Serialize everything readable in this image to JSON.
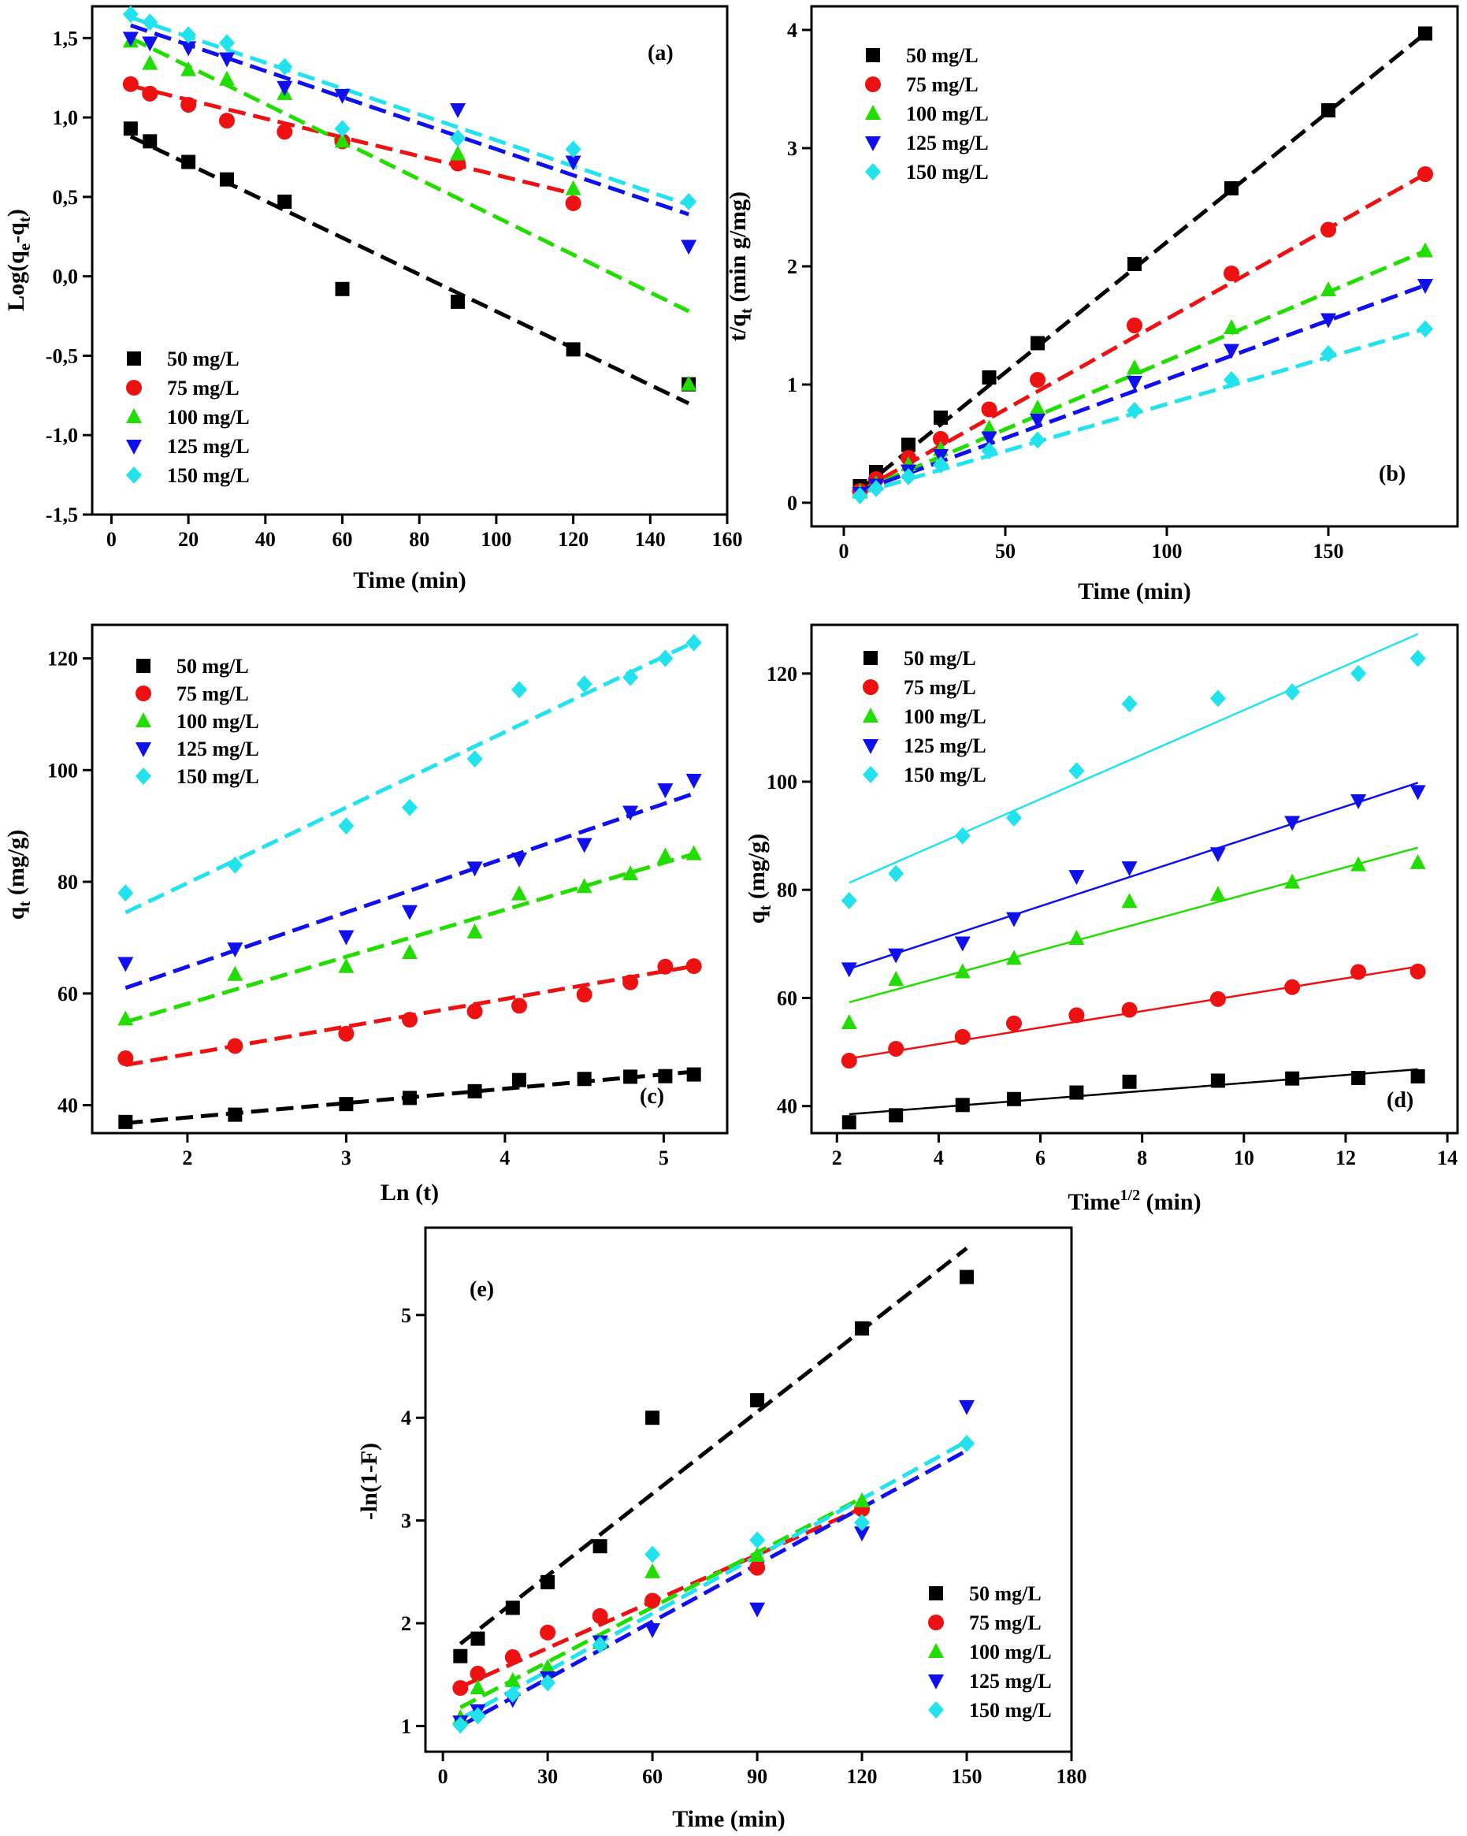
{
  "figure": {
    "colors": [
      "#000000",
      "#ee1111",
      "#22dd00",
      "#1010ee",
      "#22e2ee"
    ],
    "markers": [
      "square",
      "circle",
      "triangle-up",
      "triangle-down",
      "diamond"
    ]
  },
  "chart_data": [
    {
      "id": "a",
      "panel_label": "(a)",
      "type": "scatter",
      "fit_style": "dashed",
      "xlabel": "Time (min)",
      "ylabel": "Log(q_e-q_t)",
      "ylabel_parts": {
        "a": "Log(q",
        "b": "e",
        "c": "-q",
        "d": "t",
        "e": ")"
      },
      "xlim": [
        -5,
        160
      ],
      "ylim": [
        -1.5,
        1.7
      ],
      "xticks": [
        "0",
        "20",
        "40",
        "60",
        "80",
        "100",
        "120",
        "140",
        "160"
      ],
      "xtick_values": [
        0,
        20,
        40,
        60,
        80,
        100,
        120,
        140,
        160
      ],
      "yticks": [
        "-1,5",
        "-1,0",
        "-0,5",
        "0,0",
        "0,5",
        "1,0",
        "1,5"
      ],
      "ytick_values": [
        -1.5,
        -1.0,
        -0.5,
        0.0,
        0.5,
        1.0,
        1.5
      ],
      "legend_position": "bottom-left",
      "series": [
        {
          "name": "50 mg/L",
          "x": [
            5,
            10,
            20,
            30,
            45,
            60,
            90,
            120,
            150
          ],
          "y": [
            0.93,
            0.85,
            0.72,
            0.61,
            0.47,
            -0.08,
            -0.16,
            -0.46,
            -0.68
          ],
          "fit": [
            [
              5,
              0.88
            ],
            [
              150,
              -0.8
            ]
          ]
        },
        {
          "name": "75 mg/L",
          "x": [
            5,
            10,
            20,
            30,
            45,
            60,
            90,
            120
          ],
          "y": [
            1.21,
            1.15,
            1.08,
            0.98,
            0.91,
            0.85,
            0.71,
            0.46
          ],
          "fit": [
            [
              5,
              1.2
            ],
            [
              120,
              0.52
            ]
          ]
        },
        {
          "name": "100 mg/L",
          "x": [
            5,
            10,
            20,
            30,
            45,
            60,
            90,
            120,
            150
          ],
          "y": [
            1.48,
            1.34,
            1.3,
            1.24,
            1.15,
            0.85,
            0.77,
            0.55,
            -0.68
          ],
          "fit": [
            [
              5,
              1.5
            ],
            [
              150,
              -0.22
            ]
          ]
        },
        {
          "name": "125 mg/L",
          "x": [
            5,
            10,
            20,
            30,
            45,
            60,
            90,
            120,
            150
          ],
          "y": [
            1.5,
            1.47,
            1.44,
            1.37,
            1.19,
            1.14,
            1.05,
            0.72,
            0.19
          ],
          "fit": [
            [
              5,
              1.58
            ],
            [
              150,
              0.39
            ]
          ]
        },
        {
          "name": "150 mg/L",
          "x": [
            5,
            10,
            20,
            30,
            45,
            60,
            90,
            120,
            150
          ],
          "y": [
            1.65,
            1.6,
            1.52,
            1.47,
            1.32,
            0.93,
            0.87,
            0.8,
            0.47
          ],
          "fit": [
            [
              5,
              1.63
            ],
            [
              150,
              0.45
            ]
          ]
        }
      ]
    },
    {
      "id": "b",
      "panel_label": "(b)",
      "type": "scatter",
      "fit_style": "dashed",
      "xlabel": "Time (min)",
      "ylabel": "t/q_t (min g/mg)",
      "ylabel_parts": {
        "a": "t/q",
        "b": "t",
        "c": " (min g/mg)"
      },
      "xlim": [
        -10,
        190
      ],
      "ylim": [
        -0.2,
        4.2
      ],
      "xticks": [
        "0",
        "50",
        "100",
        "150"
      ],
      "xtick_values": [
        0,
        50,
        100,
        150
      ],
      "yticks": [
        "0",
        "1",
        "2",
        "3",
        "4"
      ],
      "ytick_values": [
        0,
        1,
        2,
        3,
        4
      ],
      "legend_position": "top-left",
      "series": [
        {
          "name": "50 mg/L",
          "x": [
            5,
            10,
            20,
            30,
            45,
            60,
            90,
            120,
            150,
            180
          ],
          "y": [
            0.14,
            0.26,
            0.49,
            0.72,
            1.06,
            1.35,
            2.02,
            2.66,
            3.32,
            3.97
          ],
          "fit": [
            [
              5,
              0.11
            ],
            [
              180,
              3.97
            ]
          ]
        },
        {
          "name": "75 mg/L",
          "x": [
            5,
            10,
            20,
            30,
            45,
            60,
            90,
            120,
            150,
            180
          ],
          "y": [
            0.1,
            0.2,
            0.38,
            0.54,
            0.79,
            1.04,
            1.5,
            1.94,
            2.31,
            2.78
          ],
          "fit": [
            [
              5,
              0.1
            ],
            [
              180,
              2.78
            ]
          ]
        },
        {
          "name": "100 mg/L",
          "x": [
            5,
            10,
            20,
            30,
            45,
            60,
            90,
            120,
            150,
            180
          ],
          "y": [
            0.09,
            0.16,
            0.32,
            0.45,
            0.63,
            0.8,
            1.14,
            1.48,
            1.8,
            2.13
          ],
          "fit": [
            [
              5,
              0.1
            ],
            [
              180,
              2.13
            ]
          ]
        },
        {
          "name": "125 mg/L",
          "x": [
            5,
            10,
            20,
            30,
            45,
            60,
            90,
            120,
            150,
            180
          ],
          "y": [
            0.08,
            0.15,
            0.27,
            0.4,
            0.55,
            0.7,
            1.02,
            1.29,
            1.55,
            1.84
          ],
          "fit": [
            [
              5,
              0.1
            ],
            [
              180,
              1.84
            ]
          ]
        },
        {
          "name": "150 mg/L",
          "x": [
            5,
            10,
            20,
            30,
            45,
            60,
            90,
            120,
            150,
            180
          ],
          "y": [
            0.06,
            0.12,
            0.22,
            0.32,
            0.44,
            0.53,
            0.78,
            1.04,
            1.26,
            1.47
          ],
          "fit": [
            [
              5,
              0.08
            ],
            [
              180,
              1.47
            ]
          ]
        }
      ]
    },
    {
      "id": "c",
      "panel_label": "(c)",
      "type": "scatter",
      "fit_style": "dashed",
      "xlabel": "Ln (t)",
      "ylabel": "q_t (mg/g)",
      "ylabel_parts": {
        "a": "q",
        "b": "t",
        "c": " (mg/g)"
      },
      "xlim": [
        1.4,
        5.4
      ],
      "ylim": [
        35,
        126
      ],
      "xticks": [
        "2",
        "3",
        "4",
        "5"
      ],
      "xtick_values": [
        2,
        3,
        4,
        5
      ],
      "yticks": [
        "40",
        "60",
        "80",
        "100",
        "120"
      ],
      "ytick_values": [
        40,
        60,
        80,
        100,
        120
      ],
      "legend_position": "top-left",
      "series": [
        {
          "name": "50 mg/L",
          "x": [
            1.61,
            2.3,
            3.0,
            3.4,
            3.81,
            4.09,
            4.5,
            4.79,
            5.01,
            5.19
          ],
          "y": [
            37,
            38.3,
            40.2,
            41.3,
            42.5,
            44.5,
            44.7,
            45.1,
            45.2,
            45.5
          ],
          "fit": [
            [
              1.61,
              36.8
            ],
            [
              5.19,
              46
            ]
          ]
        },
        {
          "name": "75 mg/L",
          "x": [
            1.61,
            2.3,
            3.0,
            3.4,
            3.81,
            4.09,
            4.5,
            4.79,
            5.01,
            5.19
          ],
          "y": [
            48.4,
            50.6,
            52.8,
            55.3,
            56.8,
            57.8,
            59.8,
            62.0,
            64.8,
            64.9
          ],
          "fit": [
            [
              1.61,
              47.2
            ],
            [
              5.19,
              64.9
            ]
          ]
        },
        {
          "name": "100 mg/L",
          "x": [
            1.61,
            2.3,
            3.0,
            3.4,
            3.81,
            4.09,
            4.5,
            4.79,
            5.01,
            5.19
          ],
          "y": [
            55.4,
            63.4,
            64.8,
            67.3,
            71.0,
            77.8,
            79.1,
            81.4,
            84.6,
            85.0
          ],
          "fit": [
            [
              1.61,
              54.9
            ],
            [
              5.19,
              85.0
            ]
          ]
        },
        {
          "name": "125 mg/L",
          "x": [
            1.61,
            2.3,
            3.0,
            3.4,
            3.81,
            4.09,
            4.5,
            4.79,
            5.01,
            5.19
          ],
          "y": [
            65.4,
            68.0,
            70.2,
            74.7,
            82.5,
            84.1,
            86.7,
            92.5,
            96.5,
            98.2
          ],
          "fit": [
            [
              1.61,
              61.0
            ],
            [
              5.19,
              95.8
            ]
          ]
        },
        {
          "name": "150 mg/L",
          "x": [
            1.61,
            2.3,
            3.0,
            3.4,
            3.81,
            4.09,
            4.5,
            4.79,
            5.01,
            5.19
          ],
          "y": [
            78.0,
            83.0,
            90.0,
            93.3,
            102.0,
            114.4,
            115.4,
            116.6,
            120.0,
            122.8
          ],
          "fit": [
            [
              1.61,
              74.5
            ],
            [
              5.19,
              122.9
            ]
          ]
        }
      ]
    },
    {
      "id": "d",
      "panel_label": "(d)",
      "type": "scatter",
      "fit_style": "solid",
      "xlabel": "Time^1/2 (min)",
      "xlabel_parts": {
        "a": "Time",
        "b": "1/2",
        "c": " (min)"
      },
      "ylabel": "q_t (mg/g)",
      "ylabel_parts": {
        "a": "q",
        "b": "t",
        "c": " (mg/g)"
      },
      "xlim": [
        1.5,
        14.2
      ],
      "ylim": [
        35,
        129
      ],
      "xticks": [
        "2",
        "4",
        "6",
        "8",
        "10",
        "12",
        "14"
      ],
      "xtick_values": [
        2,
        4,
        6,
        8,
        10,
        12,
        14
      ],
      "yticks": [
        "40",
        "60",
        "80",
        "100",
        "120"
      ],
      "ytick_values": [
        40,
        60,
        80,
        100,
        120
      ],
      "legend_position": "top-left",
      "series": [
        {
          "name": "50 mg/L",
          "x": [
            2.24,
            3.16,
            4.47,
            5.48,
            6.71,
            7.75,
            9.49,
            10.95,
            12.25,
            13.42
          ],
          "y": [
            37,
            38.3,
            40.2,
            41.3,
            42.5,
            44.5,
            44.7,
            45.1,
            45.2,
            45.5
          ],
          "fit": [
            [
              2.24,
              38.5
            ],
            [
              13.42,
              46.8
            ]
          ]
        },
        {
          "name": "75 mg/L",
          "x": [
            2.24,
            3.16,
            4.47,
            5.48,
            6.71,
            7.75,
            9.49,
            10.95,
            12.25,
            13.42
          ],
          "y": [
            48.4,
            50.6,
            52.8,
            55.3,
            56.8,
            57.8,
            59.8,
            62.0,
            64.8,
            64.9
          ],
          "fit": [
            [
              2.24,
              48.8
            ],
            [
              13.42,
              65.8
            ]
          ]
        },
        {
          "name": "100 mg/L",
          "x": [
            2.24,
            3.16,
            4.47,
            5.48,
            6.71,
            7.75,
            9.49,
            10.95,
            12.25,
            13.42
          ],
          "y": [
            55.4,
            63.4,
            64.8,
            67.3,
            71.0,
            77.8,
            79.1,
            81.4,
            84.6,
            85.0
          ],
          "fit": [
            [
              2.24,
              59.2
            ],
            [
              13.42,
              87.8
            ]
          ]
        },
        {
          "name": "125 mg/L",
          "x": [
            2.24,
            3.16,
            4.47,
            5.48,
            6.71,
            7.75,
            9.49,
            10.95,
            12.25,
            13.42
          ],
          "y": [
            65.4,
            68.0,
            70.2,
            74.7,
            82.5,
            84.1,
            86.7,
            92.5,
            96.5,
            98.2
          ],
          "fit": [
            [
              2.24,
              65.4
            ],
            [
              13.42,
              99.8
            ]
          ]
        },
        {
          "name": "150 mg/L",
          "x": [
            2.24,
            3.16,
            4.47,
            5.48,
            6.71,
            7.75,
            9.49,
            10.95,
            12.25,
            13.42
          ],
          "y": [
            78.0,
            83.0,
            90.0,
            93.3,
            102.0,
            114.4,
            115.4,
            116.6,
            120.0,
            122.8
          ],
          "fit": [
            [
              2.24,
              81.3
            ],
            [
              13.42,
              127.3
            ]
          ]
        }
      ]
    },
    {
      "id": "e",
      "panel_label": "(e)",
      "type": "scatter",
      "fit_style": "dashed",
      "xlabel": "Time (min)",
      "ylabel": "-ln(1-F)",
      "xlim": [
        -5,
        180
      ],
      "ylim": [
        0.75,
        5.85
      ],
      "xticks": [
        "0",
        "30",
        "60",
        "90",
        "120",
        "150",
        "180"
      ],
      "xtick_values": [
        0,
        30,
        60,
        90,
        120,
        150,
        180
      ],
      "yticks": [
        "1",
        "2",
        "3",
        "4",
        "5"
      ],
      "ytick_values": [
        1,
        2,
        3,
        4,
        5
      ],
      "legend_position": "bottom-right",
      "series": [
        {
          "name": "50 mg/L",
          "x": [
            5,
            10,
            20,
            30,
            45,
            60,
            90,
            120,
            150
          ],
          "y": [
            1.68,
            1.85,
            2.15,
            2.4,
            2.75,
            4.0,
            4.17,
            4.87,
            5.37
          ],
          "fit": [
            [
              5,
              1.8
            ],
            [
              150,
              5.65
            ]
          ]
        },
        {
          "name": "75 mg/L",
          "x": [
            5,
            10,
            20,
            30,
            45,
            60,
            90,
            120
          ],
          "y": [
            1.37,
            1.51,
            1.67,
            1.91,
            2.07,
            2.22,
            2.54,
            3.11
          ],
          "fit": [
            [
              5,
              1.38
            ],
            [
              120,
              3.12
            ]
          ]
        },
        {
          "name": "100 mg/L",
          "x": [
            5,
            10,
            20,
            30,
            45,
            60,
            90,
            120
          ],
          "y": [
            1.08,
            1.37,
            1.44,
            1.57,
            1.81,
            2.5,
            2.66,
            3.19
          ],
          "fit": [
            [
              5,
              1.18
            ],
            [
              120,
              3.22
            ]
          ]
        },
        {
          "name": "125 mg/L",
          "x": [
            5,
            10,
            20,
            30,
            45,
            60,
            90,
            120,
            150
          ],
          "y": [
            1.04,
            1.15,
            1.26,
            1.47,
            1.82,
            1.94,
            2.14,
            2.88,
            4.11
          ],
          "fit": [
            [
              5,
              1.0
            ],
            [
              150,
              3.68
            ]
          ]
        },
        {
          "name": "150 mg/L",
          "x": [
            5,
            10,
            20,
            30,
            45,
            60,
            90,
            120,
            150
          ],
          "y": [
            1.01,
            1.1,
            1.31,
            1.42,
            1.79,
            2.67,
            2.81,
            2.98,
            3.75
          ],
          "fit": [
            [
              5,
              1.07
            ],
            [
              150,
              3.77
            ]
          ]
        }
      ]
    }
  ]
}
